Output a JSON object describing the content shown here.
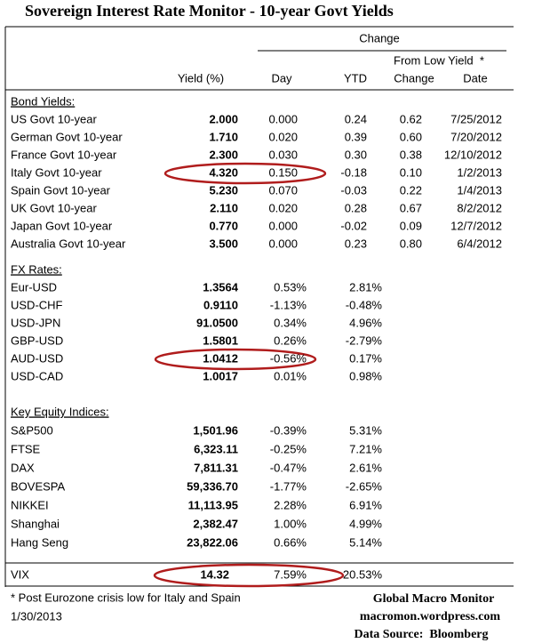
{
  "title": "Sovereign Interest Rate Monitor - 10-year Govt Yields",
  "header": {
    "change": "Change",
    "from_low_yield": "From Low Yield  *",
    "yield": "Yield (%)",
    "day": "Day",
    "ytd": "YTD",
    "low_change": "Change",
    "date": "Date"
  },
  "sections": [
    {
      "title": "Bond Yields:",
      "rows": [
        [
          "US Govt 10-year",
          "2.000",
          "0.000",
          "0.24",
          "0.62",
          "7/25/2012"
        ],
        [
          "German Govt 10-year",
          "1.710",
          "0.020",
          "0.39",
          "0.60",
          "7/20/2012"
        ],
        [
          "France Govt 10-year",
          "2.300",
          "0.030",
          "0.30",
          "0.38",
          "12/10/2012"
        ],
        [
          "Italy Govt 10-year",
          "4.320",
          "0.150",
          "-0.18",
          "0.10",
          "1/2/2013"
        ],
        [
          "Spain Govt 10-year",
          "5.230",
          "0.070",
          "-0.03",
          "0.22",
          "1/4/2013"
        ],
        [
          "UK Govt 10-year",
          "2.110",
          "0.020",
          "0.28",
          "0.67",
          "8/2/2012"
        ],
        [
          "Japan Govt 10-year",
          "0.770",
          "0.000",
          "-0.02",
          "0.09",
          "12/7/2012"
        ],
        [
          "Australia Govt 10-year",
          "3.500",
          "0.000",
          "0.23",
          "0.80",
          "6/4/2012"
        ]
      ]
    },
    {
      "title": "FX Rates:",
      "rows": [
        [
          "Eur-USD",
          "1.3564",
          "0.53%",
          "2.81%"
        ],
        [
          "USD-CHF",
          "0.9110",
          "-1.13%",
          "-0.48%"
        ],
        [
          "USD-JPN",
          "91.0500",
          "0.34%",
          "4.96%"
        ],
        [
          "GBP-USD",
          "1.5801",
          "0.26%",
          "-2.79%"
        ],
        [
          "AUD-USD",
          "1.0412",
          "-0.56%",
          "0.17%"
        ],
        [
          "USD-CAD",
          "1.0017",
          "0.01%",
          "0.98%"
        ]
      ]
    },
    {
      "title": "Key Equity Indices:",
      "rows": [
        [
          "S&P500",
          "1,501.96",
          "-0.39%",
          "5.31%"
        ],
        [
          "FTSE",
          "6,323.11",
          "-0.25%",
          "7.21%"
        ],
        [
          "DAX",
          "7,811.31",
          "-0.47%",
          "2.61%"
        ],
        [
          "BOVESPA",
          "59,336.70",
          "-1.77%",
          "-2.65%"
        ],
        [
          "NIKKEI",
          "11,113.95",
          "2.28%",
          "6.91%"
        ],
        [
          "Shanghai",
          "2,382.47",
          "1.00%",
          "4.99%"
        ],
        [
          "Hang Seng",
          "23,822.06",
          "0.66%",
          "5.14%"
        ]
      ]
    }
  ],
  "vix": [
    "VIX",
    "14.32",
    "7.59%",
    "20.53%"
  ],
  "footnote": "* Post Eurozone crisis low for Italy and Spain",
  "date": "1/30/2013",
  "source": [
    "Global Macro Monitor",
    "macromon.wordpress.com",
    "Data Source:  Bloomberg"
  ]
}
